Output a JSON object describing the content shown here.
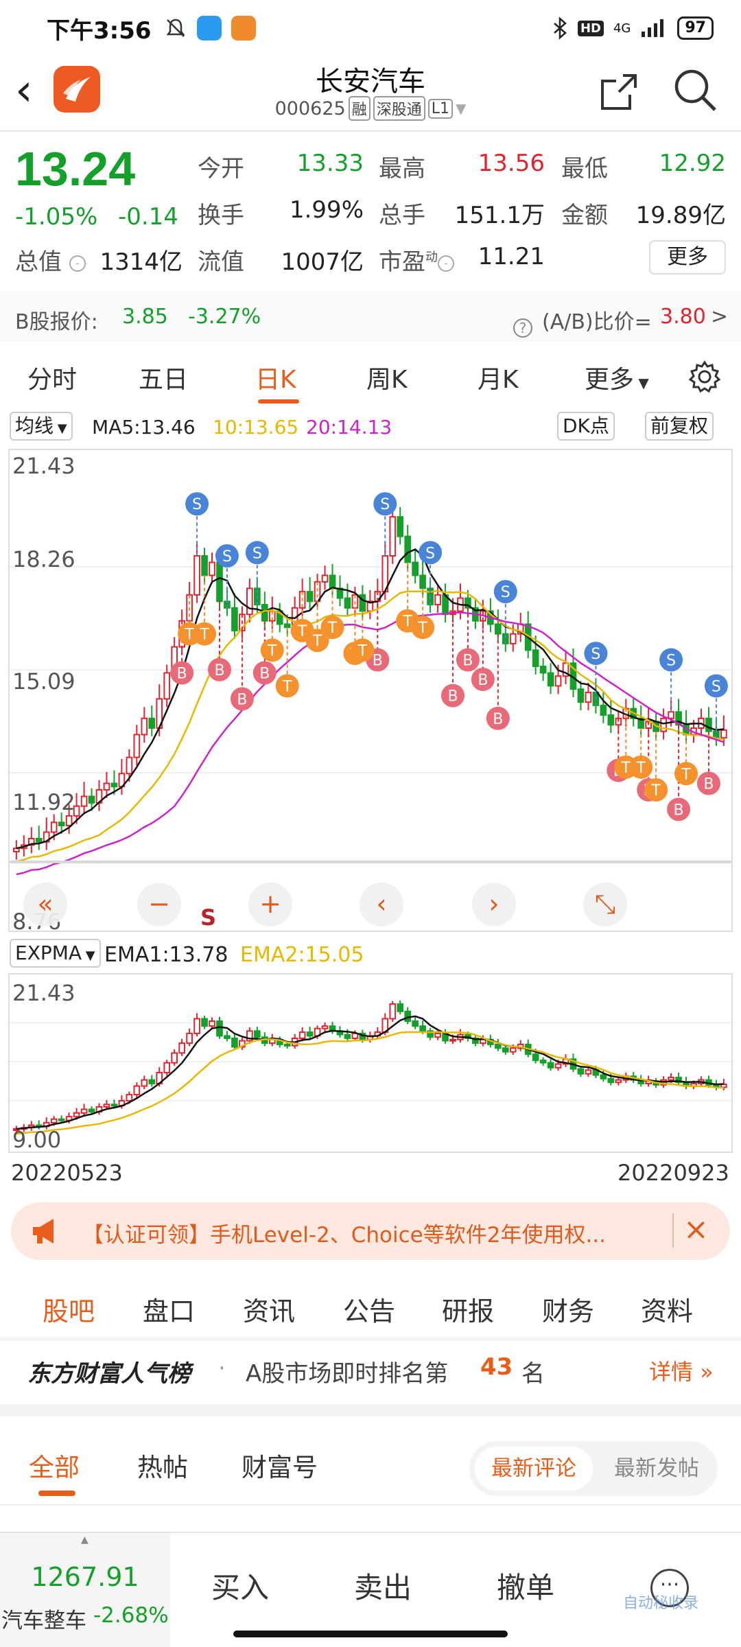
{
  "status": {
    "time": "下午3:56",
    "network": "4G",
    "battery": "97"
  },
  "header": {
    "title": "长安汽车",
    "code": "000625",
    "tags": [
      "融",
      "深股通",
      "L1"
    ]
  },
  "quote": {
    "price": "13.24",
    "change_pct": "-1.05%",
    "change": "-0.14",
    "open_label": "今开",
    "open": "13.33",
    "high_label": "最高",
    "high": "13.56",
    "low_label": "最低",
    "low": "12.92",
    "turnover_label": "换手",
    "turnover": "1.99%",
    "volume_label": "总手",
    "volume": "151.1万",
    "amount_label": "金额",
    "amount": "19.89亿",
    "mcap_label": "总值",
    "mcap": "1314亿",
    "float_label": "流值",
    "float": "1007亿",
    "pe_label": "市盈",
    "pe_sup": "动",
    "pe": "11.21",
    "more_label": "更多"
  },
  "bshare": {
    "label": "B股报价:",
    "price": "3.85",
    "change": "-3.27%",
    "ratio_label": "(A/B)比价=",
    "ratio": "3.80",
    "arrow": ">"
  },
  "ktabs": [
    "分时",
    "五日",
    "日K",
    "周K",
    "月K",
    "更多"
  ],
  "ma": {
    "selector": "均线",
    "ma5": "MA5:13.46",
    "ma10": "10:13.65",
    "ma20": "20:14.13",
    "dk": "DK点",
    "adjust": "前复权"
  },
  "kchart": {
    "y_labels": [
      "21.43",
      "18.26",
      "15.09",
      "11.92",
      "8.76"
    ],
    "marker_s": "S",
    "marker_b": "B",
    "marker_t": "T",
    "ctrl": [
      "«",
      "−",
      "+",
      "‹",
      "›",
      "⤡"
    ],
    "s_label": "S"
  },
  "ema": {
    "selector": "EXPMA",
    "ema1": "EMA1:13.78",
    "ema2": "EMA2:15.05"
  },
  "chart2": {
    "y_top": "21.43",
    "y_bottom": "9.00",
    "date_start": "20220523",
    "date_end": "20220923"
  },
  "chart_data": {
    "type": "candlestick",
    "ylim": [
      8.76,
      21.43
    ],
    "x_range": [
      "20220523",
      "20220923"
    ],
    "indicators": {
      "MA5": 13.46,
      "MA10": 13.65,
      "MA20": 14.13,
      "EMA1": 13.78,
      "EMA2": 15.05
    }
  },
  "banner": {
    "text": "【认证可领】手机Level-2、Choice等软件2年使用权..."
  },
  "bottabs": [
    "股吧",
    "盘口",
    "资讯",
    "公告",
    "研报",
    "财务",
    "资料"
  ],
  "rank": {
    "title": "东方财富人气榜",
    "text": "A股市场即时排名第",
    "rank": "43",
    "unit": "名",
    "detail": "详情"
  },
  "subtabs": [
    "全部",
    "热帖",
    "财富号"
  ],
  "sort": {
    "latest_comment": "最新评论",
    "latest_post": "最新发帖"
  },
  "bottom": {
    "index_value": "1267.91",
    "index_name": "汽车整车",
    "index_change": "-2.68%",
    "buy": "买入",
    "sell": "卖出",
    "cancel": "撤单"
  },
  "watermark": "自动秘收录",
  "colors": {
    "up": "#e0232c",
    "down": "#14a02a",
    "accent": "#e85d1a",
    "ma5": "#111111",
    "ma10": "#e8b800",
    "ma20": "#cc22cc"
  }
}
